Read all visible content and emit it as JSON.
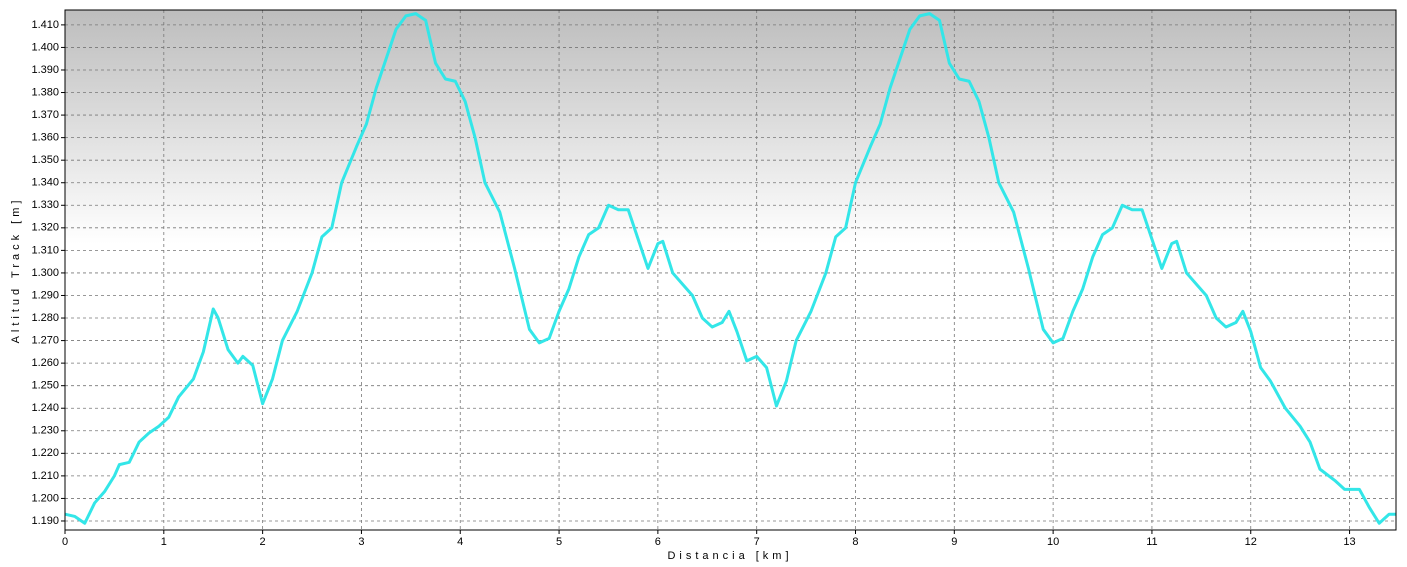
{
  "chart_data": {
    "type": "line",
    "xlabel": "Distancia [km]",
    "ylabel": "Altitud Track [m]",
    "color": "#33e6e8",
    "grid": true,
    "xlim": [
      0,
      13.47
    ],
    "ylim": [
      1186,
      1416.6
    ],
    "xticks": [
      0,
      1,
      2,
      3,
      4,
      5,
      6,
      7,
      8,
      9,
      10,
      11,
      12,
      13
    ],
    "yticks": [
      {
        "value": 1190,
        "label": "1.190"
      },
      {
        "value": 1200,
        "label": "1.200"
      },
      {
        "value": 1210,
        "label": "1.210"
      },
      {
        "value": 1220,
        "label": "1.220"
      },
      {
        "value": 1230,
        "label": "1.230"
      },
      {
        "value": 1240,
        "label": "1.240"
      },
      {
        "value": 1250,
        "label": "1.250"
      },
      {
        "value": 1260,
        "label": "1.260"
      },
      {
        "value": 1270,
        "label": "1.270"
      },
      {
        "value": 1280,
        "label": "1.280"
      },
      {
        "value": 1290,
        "label": "1.290"
      },
      {
        "value": 1300,
        "label": "1.300"
      },
      {
        "value": 1310,
        "label": "1.310"
      },
      {
        "value": 1320,
        "label": "1.320"
      },
      {
        "value": 1330,
        "label": "1.330"
      },
      {
        "value": 1340,
        "label": "1.340"
      },
      {
        "value": 1350,
        "label": "1.350"
      },
      {
        "value": 1360,
        "label": "1.360"
      },
      {
        "value": 1370,
        "label": "1.370"
      },
      {
        "value": 1380,
        "label": "1.380"
      },
      {
        "value": 1390,
        "label": "1.390"
      },
      {
        "value": 1400,
        "label": "1.400"
      },
      {
        "value": 1410,
        "label": "1.410"
      }
    ],
    "x": [
      0,
      0.1,
      0.2,
      0.3,
      0.4,
      0.5,
      0.55,
      0.65,
      0.75,
      0.85,
      0.95,
      1.05,
      1.15,
      1.3,
      1.4,
      1.5,
      1.55,
      1.65,
      1.75,
      1.8,
      1.9,
      2.0,
      2.1,
      2.2,
      2.35,
      2.5,
      2.6,
      2.7,
      2.8,
      2.95,
      3.05,
      3.15,
      3.25,
      3.35,
      3.45,
      3.55,
      3.65,
      3.75,
      3.85,
      3.95,
      4.05,
      4.15,
      4.25,
      4.4,
      4.55,
      4.7,
      4.8,
      4.9,
      5.0,
      5.1,
      5.2,
      5.3,
      5.4,
      5.5,
      5.6,
      5.7,
      5.8,
      5.9,
      6.0,
      6.05,
      6.15,
      6.25,
      6.35,
      6.45,
      6.55,
      6.65,
      6.72,
      6.8,
      6.9,
      7.0,
      7.1,
      7.2,
      7.3,
      7.4,
      7.55,
      7.7,
      7.8,
      7.9,
      8.0,
      8.15,
      8.25,
      8.35,
      8.45,
      8.55,
      8.65,
      8.75,
      8.85,
      8.95,
      9.05,
      9.15,
      9.25,
      9.35,
      9.45,
      9.6,
      9.75,
      9.9,
      10.0,
      10.1,
      10.2,
      10.3,
      10.4,
      10.5,
      10.6,
      10.7,
      10.8,
      10.9,
      11.0,
      11.1,
      11.2,
      11.25,
      11.35,
      11.45,
      11.55,
      11.65,
      11.75,
      11.85,
      11.92,
      12.0,
      12.1,
      12.2,
      12.35,
      12.5,
      12.6,
      12.7,
      12.85,
      12.95,
      13.1,
      13.2,
      13.3,
      13.4,
      13.47
    ],
    "values": [
      1193,
      1192,
      1189,
      1198,
      1203,
      1210,
      1215,
      1216,
      1225,
      1229,
      1232,
      1236,
      1245,
      1253,
      1265,
      1284,
      1280,
      1266,
      1260,
      1263,
      1259,
      1242,
      1253,
      1270,
      1283,
      1300,
      1316,
      1320,
      1340,
      1356,
      1366,
      1382,
      1395,
      1408,
      1414,
      1415,
      1412,
      1393,
      1386,
      1385,
      1376,
      1360,
      1340,
      1327,
      1302,
      1275,
      1269,
      1271,
      1283,
      1293,
      1307,
      1317,
      1320,
      1330,
      1328,
      1328,
      1315,
      1302,
      1313,
      1314,
      1300,
      1295,
      1290,
      1280,
      1276,
      1278,
      1283,
      1274,
      1261,
      1263,
      1258,
      1241,
      1252,
      1270,
      1283,
      1300,
      1316,
      1320,
      1340,
      1356,
      1366,
      1382,
      1395,
      1408,
      1414,
      1415,
      1412,
      1393,
      1386,
      1385,
      1376,
      1360,
      1340,
      1327,
      1302,
      1275,
      1269,
      1271,
      1283,
      1293,
      1307,
      1317,
      1320,
      1330,
      1328,
      1328,
      1315,
      1302,
      1313,
      1314,
      1300,
      1295,
      1290,
      1280,
      1276,
      1278,
      1283,
      1274,
      1258,
      1252,
      1240,
      1232,
      1225,
      1213,
      1208,
      1204,
      1204,
      1196,
      1189,
      1193,
      1193
    ]
  }
}
